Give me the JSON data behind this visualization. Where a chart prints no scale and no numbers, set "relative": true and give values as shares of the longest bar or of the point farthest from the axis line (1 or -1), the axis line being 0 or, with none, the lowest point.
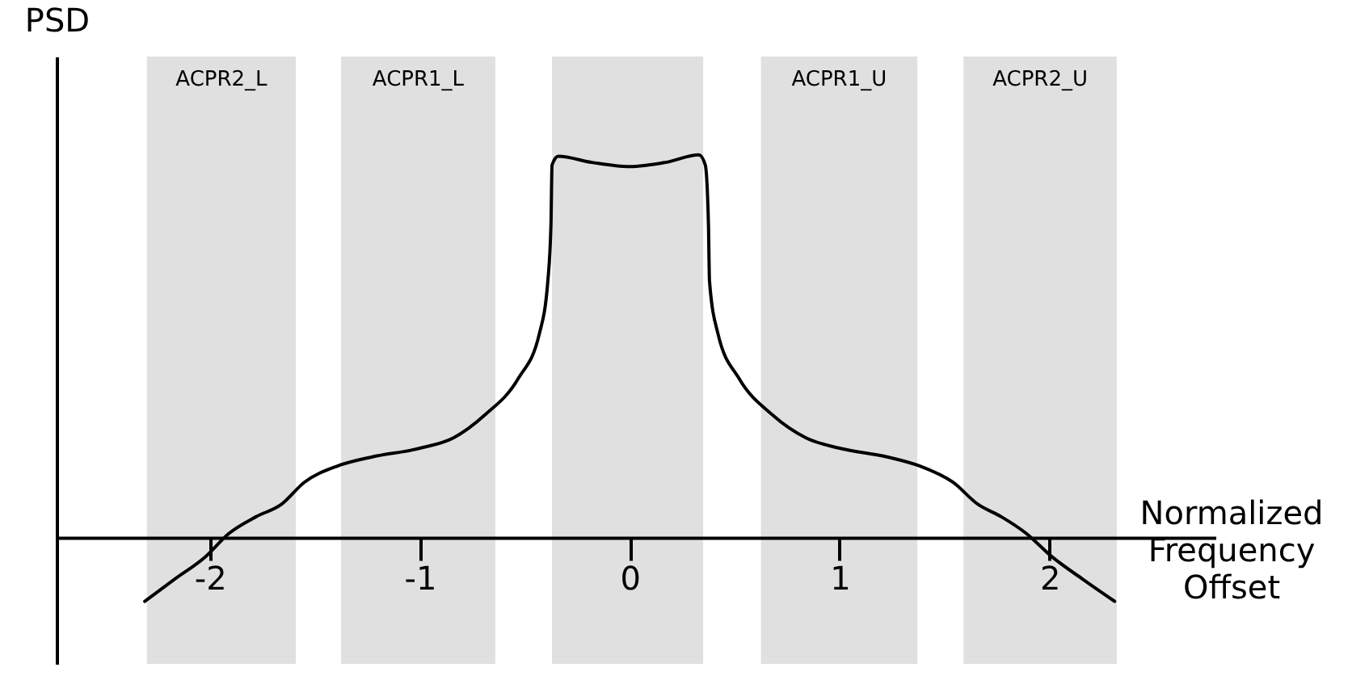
{
  "chart_data": {
    "type": "line",
    "relative": true,
    "xlabel": "Normalized Frequency Offset",
    "ylabel": "PSD",
    "xlim": [
      -2.73,
      2.79
    ],
    "xticks": [
      -2,
      -1,
      0,
      1,
      2
    ],
    "x": [
      -2.31,
      -2.17,
      -2.02,
      -1.91,
      -1.78,
      -1.66,
      -1.55,
      -1.39,
      -1.23,
      -1.0,
      -0.84,
      -0.69,
      -0.53,
      -0.43,
      -0.39,
      -0.375,
      -0.37,
      -0.34,
      -0.18,
      0.0,
      0.17,
      0.33,
      0.36,
      0.375,
      0.38,
      0.42,
      0.52,
      0.68,
      0.84,
      1.0,
      1.23,
      1.38,
      1.54,
      1.66,
      1.77,
      1.89,
      2.01,
      2.16,
      2.31
    ],
    "series": [
      {
        "color": "#000000",
        "values": [
          -0.167,
          -0.11,
          -0.05,
          0.01,
          0.054,
          0.086,
          0.144,
          0.187,
          0.21,
          0.233,
          0.26,
          0.32,
          0.416,
          0.533,
          0.67,
          0.82,
          0.973,
          0.996,
          0.98,
          0.969,
          0.98,
          1.0,
          0.973,
          0.82,
          0.67,
          0.533,
          0.416,
          0.32,
          0.26,
          0.233,
          0.21,
          0.187,
          0.144,
          0.086,
          0.054,
          0.01,
          -0.05,
          -0.11,
          -0.167
        ]
      }
    ],
    "bands": [
      {
        "axis": "x",
        "from": -2.3,
        "to": -1.59,
        "label": "ACPR2_L",
        "color": "#e0e0e0"
      },
      {
        "axis": "x",
        "from": -1.375,
        "to": -0.64,
        "label": "ACPR1_L",
        "color": "#e0e0e0"
      },
      {
        "axis": "x",
        "from": -0.37,
        "to": 0.35,
        "color": "#e0e0e0"
      },
      {
        "axis": "x",
        "from": 0.625,
        "to": 1.37,
        "label": "ACPR1_U",
        "color": "#e0e0e0"
      },
      {
        "axis": "x",
        "from": 1.59,
        "to": 2.32,
        "label": "ACPR2_U",
        "color": "#e0e0e0"
      }
    ],
    "grid": false,
    "marker": "none",
    "line_style": "solid"
  }
}
